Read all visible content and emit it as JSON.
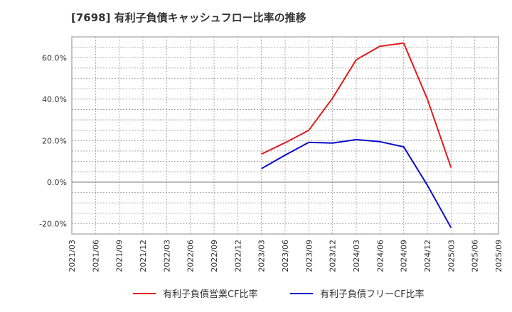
{
  "chart_data": {
    "type": "line",
    "title": "[7698]  有利子負債キャッシュフロー比率の推移",
    "xlabel": "",
    "ylabel": "",
    "categories": [
      "2021/03",
      "2021/06",
      "2021/09",
      "2021/12",
      "2022/03",
      "2022/06",
      "2022/09",
      "2022/12",
      "2023/03",
      "2023/06",
      "2023/09",
      "2023/12",
      "2024/03",
      "2024/06",
      "2024/09",
      "2024/12",
      "2025/03",
      "2025/06",
      "2025/09"
    ],
    "ylim": [
      -25,
      70
    ],
    "yticks": [
      -20,
      0,
      20,
      40,
      60
    ],
    "ytick_labels": [
      "-20.0%",
      "0.0%",
      "20.0%",
      "40.0%",
      "60.0%"
    ],
    "grid": true,
    "legend_position": "bottom-center",
    "series": [
      {
        "name": "有利子負債営業CF比率",
        "color": "#e31a1c",
        "values": [
          null,
          null,
          null,
          null,
          null,
          null,
          null,
          null,
          13.5,
          19.0,
          25.0,
          40.5,
          59.0,
          65.5,
          67.0,
          40.0,
          7.0,
          null,
          null
        ]
      },
      {
        "name": "有利子負債フリーCF比率",
        "color": "#0a0acc",
        "values": [
          null,
          null,
          null,
          null,
          null,
          null,
          null,
          null,
          6.5,
          13.0,
          19.2,
          18.8,
          20.5,
          19.5,
          17.0,
          -1.5,
          -22.0,
          null,
          null
        ]
      }
    ]
  }
}
